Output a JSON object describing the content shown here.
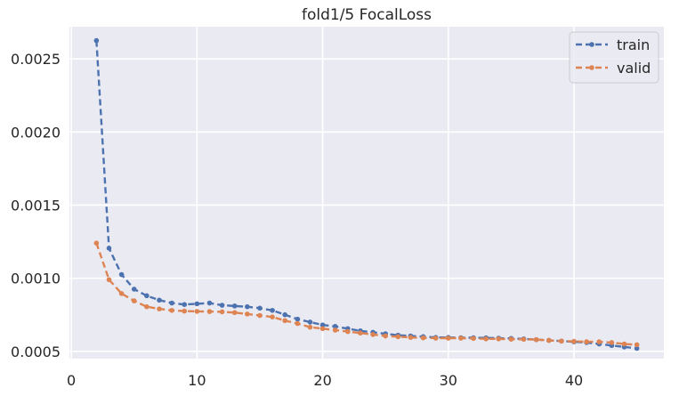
{
  "chart_data": {
    "type": "line",
    "title": "fold1/5 FocalLoss",
    "xlabel": "",
    "ylabel": "",
    "xlim": [
      -0.15,
      47.15
    ],
    "ylim": [
      0.00045,
      0.00272
    ],
    "xticks": [
      0,
      10,
      20,
      30,
      40
    ],
    "yticks": [
      0.0005,
      0.001,
      0.0015,
      0.002,
      0.0025
    ],
    "ytick_labels": [
      "0.0005",
      "0.0010",
      "0.0015",
      "0.0020",
      "0.0025"
    ],
    "grid": true,
    "legend_position": "top-right",
    "x": [
      2,
      3,
      4,
      5,
      6,
      7,
      8,
      9,
      10,
      11,
      12,
      13,
      14,
      15,
      16,
      17,
      18,
      19,
      20,
      21,
      22,
      23,
      24,
      25,
      26,
      27,
      28,
      29,
      30,
      31,
      32,
      33,
      34,
      35,
      36,
      37,
      38,
      39,
      40,
      41,
      42,
      43,
      44,
      45
    ],
    "series": [
      {
        "name": "train",
        "color": "#4c72b0",
        "values": [
          0.002625,
          0.001205,
          0.001025,
          0.000925,
          0.00088,
          0.00085,
          0.00083,
          0.00082,
          0.000825,
          0.00083,
          0.000815,
          0.00081,
          0.000805,
          0.000795,
          0.00078,
          0.00075,
          0.00072,
          0.0007,
          0.00068,
          0.00067,
          0.000655,
          0.00064,
          0.00063,
          0.00062,
          0.00061,
          0.000605,
          0.0006,
          0.000595,
          0.000595,
          0.000593,
          0.000593,
          0.000592,
          0.00059,
          0.000588,
          0.000585,
          0.00058,
          0.000575,
          0.00057,
          0.000565,
          0.00056,
          0.00055,
          0.00054,
          0.00053,
          0.00052
        ]
      },
      {
        "name": "valid",
        "color": "#dd8452",
        "values": [
          0.00124,
          0.00099,
          0.000895,
          0.000845,
          0.000805,
          0.00079,
          0.00078,
          0.000775,
          0.000773,
          0.000772,
          0.00077,
          0.000765,
          0.000755,
          0.000745,
          0.000735,
          0.00071,
          0.00069,
          0.000665,
          0.000655,
          0.000645,
          0.000635,
          0.000625,
          0.000615,
          0.000605,
          0.0006,
          0.000595,
          0.000592,
          0.00059,
          0.00059,
          0.00059,
          0.000588,
          0.000585,
          0.000585,
          0.000583,
          0.000582,
          0.00058,
          0.000575,
          0.00057,
          0.000568,
          0.000565,
          0.000565,
          0.00056,
          0.00055,
          0.000545
        ]
      }
    ]
  }
}
